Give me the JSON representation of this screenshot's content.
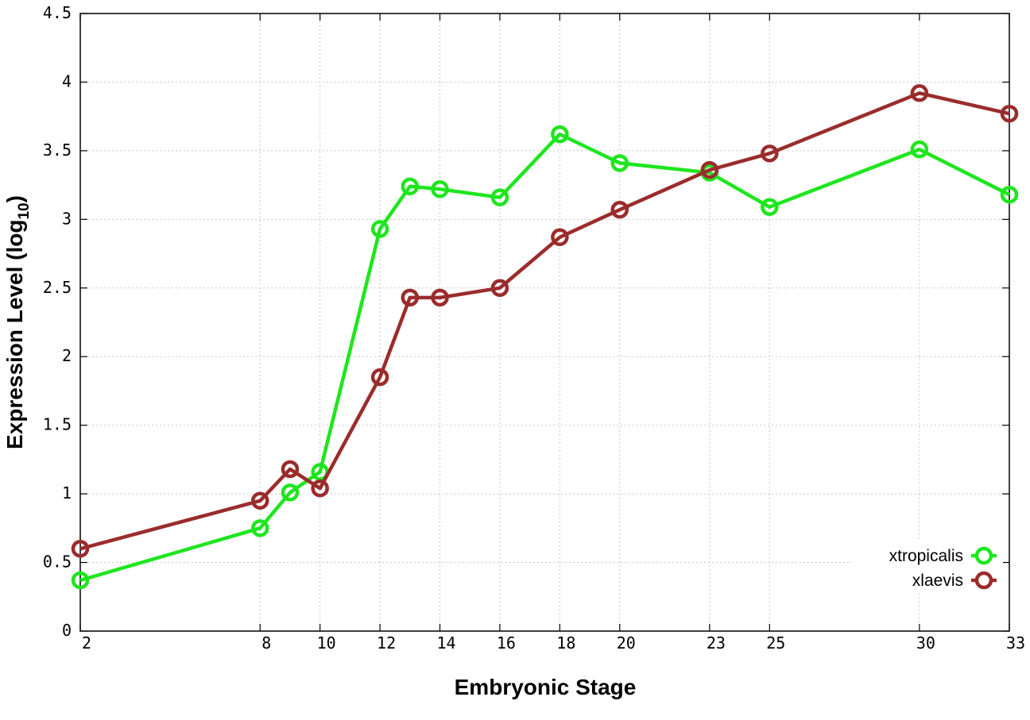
{
  "chart_data": {
    "type": "line",
    "xlabel": "Embryonic Stage",
    "ylabel": {
      "main": "Expression Level (log",
      "sub": "10",
      "end": ")"
    },
    "x_categories": [
      2,
      8,
      9,
      10,
      12,
      13,
      14,
      16,
      18,
      20,
      23,
      25,
      30,
      33
    ],
    "x_tick_labels": [
      "2",
      "8",
      "10",
      "12",
      "14",
      "16",
      "18",
      "20",
      "23",
      "25",
      "30",
      "33"
    ],
    "y_ticks": [
      "0",
      "0.5",
      "1",
      "1.5",
      "2",
      "2.5",
      "3",
      "3.5",
      "4",
      "4.5"
    ],
    "ylim": [
      0,
      4.5
    ],
    "grid": true,
    "legend_position": "bottom-right",
    "series": [
      {
        "name": "xtropicalis",
        "color": "#1ee61e",
        "values": [
          0.37,
          0.75,
          1.01,
          1.16,
          2.93,
          3.24,
          3.22,
          3.16,
          3.62,
          3.41,
          3.34,
          3.09,
          3.51,
          3.18
        ]
      },
      {
        "name": "xlaevis",
        "color": "#9b2c2c",
        "values": [
          0.6,
          0.95,
          1.18,
          1.04,
          1.85,
          2.43,
          2.43,
          2.5,
          2.87,
          3.07,
          3.36,
          3.48,
          3.92,
          3.77
        ]
      }
    ]
  }
}
